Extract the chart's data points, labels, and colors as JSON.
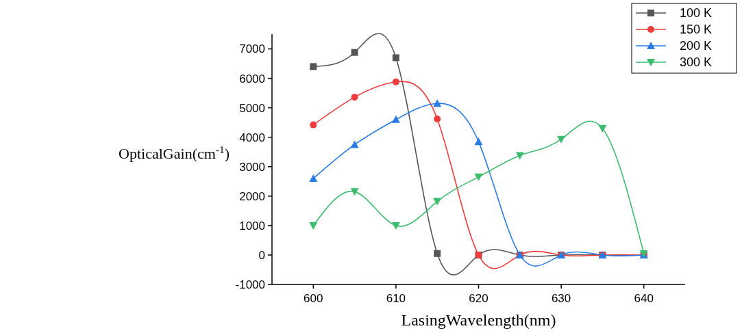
{
  "chart_data": {
    "type": "line",
    "xlabel": "LasingWavelength(nm)",
    "ylabel": "OpticalGain(cm$^{-1}$)",
    "x": [
      600,
      605,
      610,
      615,
      620,
      625,
      630,
      635,
      640
    ],
    "series": [
      {
        "name": "100 K",
        "color": "#555555",
        "marker": "square",
        "values": [
          6400,
          6880,
          6700,
          50,
          0,
          0,
          0,
          0,
          0
        ]
      },
      {
        "name": "150 K",
        "color": "#f03c3c",
        "marker": "circle",
        "values": [
          4420,
          5360,
          5880,
          4620,
          0,
          0,
          0,
          0,
          0
        ]
      },
      {
        "name": "200 K",
        "color": "#2a7be4",
        "marker": "triangle",
        "values": [
          2600,
          3750,
          4600,
          5150,
          3850,
          0,
          0,
          0,
          0
        ]
      },
      {
        "name": "300 K",
        "color": "#3dbb6e",
        "marker": "triangle-down",
        "values": [
          1000,
          2150,
          1000,
          1820,
          2650,
          3380,
          3930,
          4300,
          50
        ]
      }
    ],
    "xlim": [
      595,
      645
    ],
    "xticks": [
      600,
      610,
      620,
      630,
      640
    ],
    "ylim": [
      -1000,
      7500
    ],
    "yticks": [
      -1000,
      0,
      1000,
      2000,
      3000,
      4000,
      5000,
      6000,
      7000
    ],
    "grid": false,
    "legend": "top right",
    "line_style": "solid"
  }
}
